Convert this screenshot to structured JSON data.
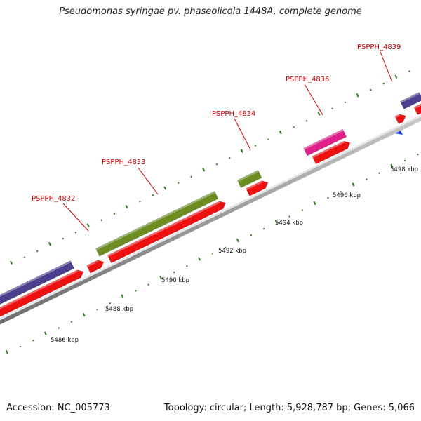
{
  "title": "Pseudomonas syringae pv. phaseolicola 1448A, complete genome",
  "footer": {
    "accession": "Accession: NC_005773",
    "summary": "Topology: circular; Length: 5,928,787 bp; Genes: 5,066"
  },
  "scale": {
    "unit": "kbp",
    "labels": [
      "5486 kbp",
      "5488 kbp",
      "5490 kbp",
      "5492 kbp",
      "5494 kbp",
      "5496 kbp",
      "5498 kbp"
    ]
  },
  "gene_labels": [
    "PSPPH_4832",
    "PSPPH_4833",
    "PSPPH_4834",
    "PSPPH_4836",
    "PSPPH_4839"
  ],
  "colors": {
    "backbone": "#8a8a8a",
    "cds": "#ee1111",
    "gene_purple": "#4b3f8e",
    "gene_green": "#6b8e23",
    "gene_pink": "#e0208a",
    "tick_green": "#2e7d1e",
    "marker_blue": "#1133ee",
    "label_red": "#cc0000"
  }
}
